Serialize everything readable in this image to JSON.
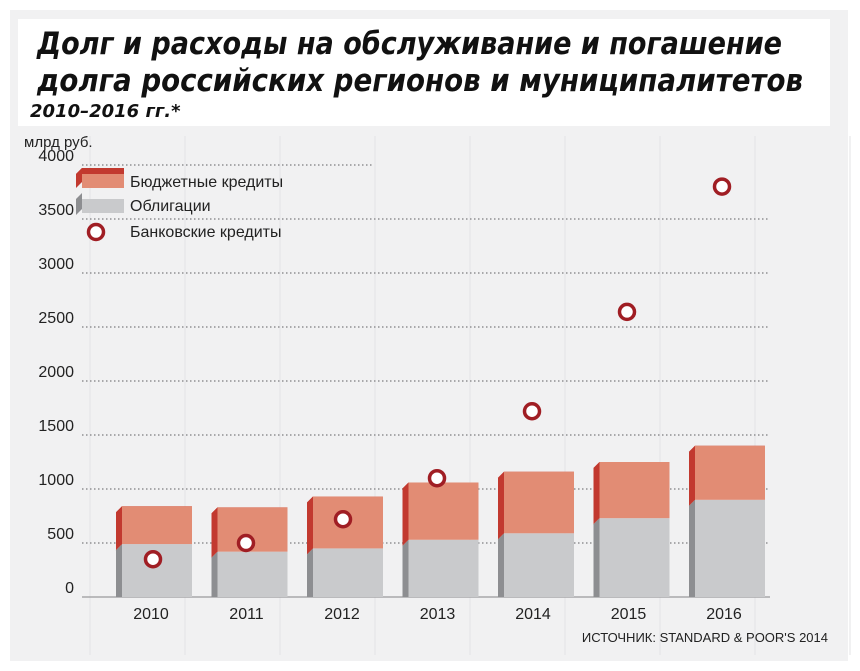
{
  "header": {
    "title_line1": "Долг и расходы на обслуживание и погашение",
    "title_line2": "долга российских регионов и муниципалитетов",
    "subtitle": "2010–2016 гг.*"
  },
  "source": "ИСТОЧНИК: STANDARD & POOR'S 2014",
  "colors": {
    "background_panel": "#f1f1f2",
    "grid_lines": "#e3e3e5",
    "budget_front": "#e28c74",
    "budget_side": "#c2392f",
    "bonds_front": "#c9cacc",
    "bonds_side": "#8d8e91",
    "bank_marker": "#a01e24"
  },
  "chart_data": {
    "type": "bar",
    "stacked": true,
    "ylabel": "млрд руб.",
    "ylim": [
      0,
      4000
    ],
    "yticks": [
      0,
      500,
      1000,
      1500,
      2000,
      2500,
      3000,
      3500,
      4000
    ],
    "grid": "dotted-horizontal",
    "legend_position": "top-left",
    "categories": [
      "2010",
      "2011",
      "2012",
      "2013",
      "2014",
      "2015",
      "2016"
    ],
    "series": [
      {
        "name": "Облигации",
        "type": "bar",
        "values": [
          490,
          420,
          450,
          530,
          590,
          730,
          900
        ]
      },
      {
        "name": "Бюджетные кредиты",
        "type": "bar",
        "values": [
          350,
          410,
          480,
          530,
          570,
          520,
          500
        ]
      },
      {
        "name": "Банковские кредиты",
        "type": "scatter",
        "values": [
          350,
          500,
          720,
          1100,
          1720,
          2640,
          3800
        ]
      }
    ]
  }
}
